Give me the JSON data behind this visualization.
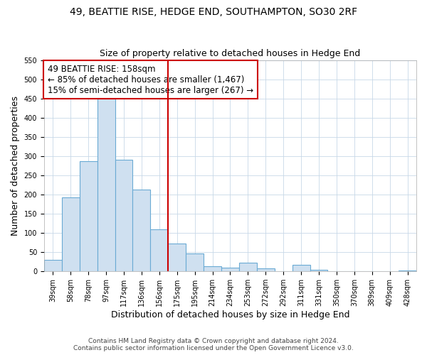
{
  "title": "49, BEATTIE RISE, HEDGE END, SOUTHAMPTON, SO30 2RF",
  "subtitle": "Size of property relative to detached houses in Hedge End",
  "xlabel": "Distribution of detached houses by size in Hedge End",
  "ylabel": "Number of detached properties",
  "bar_color": "#cfe0f0",
  "bar_edge_color": "#6aaad4",
  "background_color": "#ffffff",
  "grid_color": "#c8d8e8",
  "categories": [
    "39sqm",
    "58sqm",
    "78sqm",
    "97sqm",
    "117sqm",
    "136sqm",
    "156sqm",
    "175sqm",
    "195sqm",
    "214sqm",
    "234sqm",
    "253sqm",
    "272sqm",
    "292sqm",
    "311sqm",
    "331sqm",
    "350sqm",
    "370sqm",
    "389sqm",
    "409sqm",
    "428sqm"
  ],
  "values": [
    30,
    192,
    286,
    457,
    291,
    213,
    110,
    73,
    47,
    13,
    10,
    22,
    8,
    0,
    17,
    5,
    0,
    0,
    0,
    0,
    3
  ],
  "vline_x": 6.5,
  "vline_color": "#cc0000",
  "annotation_title": "49 BEATTIE RISE: 158sqm",
  "annotation_line1": "← 85% of detached houses are smaller (1,467)",
  "annotation_line2": "15% of semi-detached houses are larger (267) →",
  "annotation_box_color": "#ffffff",
  "annotation_box_edge": "#cc0000",
  "ylim": [
    0,
    550
  ],
  "yticks": [
    0,
    50,
    100,
    150,
    200,
    250,
    300,
    350,
    400,
    450,
    500,
    550
  ],
  "footer1": "Contains HM Land Registry data © Crown copyright and database right 2024.",
  "footer2": "Contains public sector information licensed under the Open Government Licence v3.0.",
  "title_fontsize": 10,
  "subtitle_fontsize": 9,
  "axis_label_fontsize": 9,
  "tick_fontsize": 7,
  "annotation_fontsize": 8.5,
  "footer_fontsize": 6.5
}
